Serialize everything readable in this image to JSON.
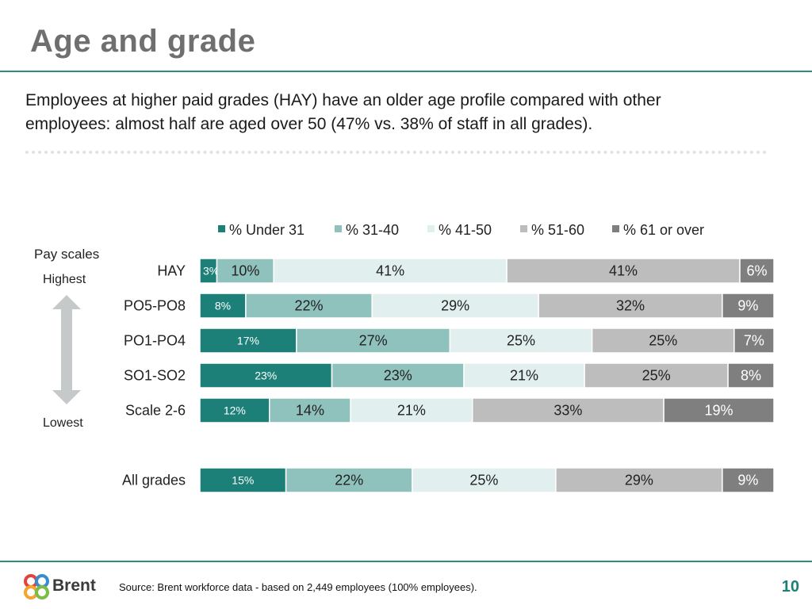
{
  "slide": {
    "title": "Age and grade",
    "intro": "Employees at higher paid grades (HAY) have an older age profile compared with other employees: almost half are aged over 50 (47% vs. 38% of staff in all grades).",
    "source": "Source: Brent workforce data - based on 2,449 employees (100% employees).",
    "page_number": "10",
    "logo_text": "Brent"
  },
  "pay_scale_axis": {
    "title": "Pay scales",
    "top_label": "Highest",
    "bottom_label": "Lowest"
  },
  "colors": {
    "accent": "#2f8a80",
    "series": [
      "#1d8078",
      "#8fc1bd",
      "#e1efee",
      "#bdbdbd",
      "#7f7f7f"
    ],
    "dark_text": "#222222",
    "light_text": "#ffffff"
  },
  "chart_data": {
    "type": "bar",
    "orientation": "horizontal",
    "stacked": true,
    "normalized": true,
    "xlim": [
      0,
      100
    ],
    "legend_position": "top",
    "series_names": [
      "% Under 31",
      "% 31-40",
      "% 41-50",
      "% 51-60",
      "% 61 or over"
    ],
    "rows": [
      {
        "name": "HAY",
        "values": [
          3,
          10,
          41,
          41,
          6
        ],
        "labels": [
          "3%",
          "10%",
          "41%",
          "41%",
          "6%"
        ]
      },
      {
        "name": "PO5-PO8",
        "values": [
          8,
          22,
          29,
          32,
          9
        ],
        "labels": [
          "8%",
          "22%",
          "29%",
          "32%",
          "9%"
        ]
      },
      {
        "name": "PO1-PO4",
        "values": [
          17,
          27,
          25,
          25,
          7
        ],
        "labels": [
          "17%",
          "27%",
          "25%",
          "25%",
          "7%"
        ]
      },
      {
        "name": "SO1-SO2",
        "values": [
          23,
          23,
          21,
          25,
          8
        ],
        "labels": [
          "23%",
          "23%",
          "21%",
          "25%",
          "8%"
        ]
      },
      {
        "name": "Scale 2-6",
        "values": [
          12,
          14,
          21,
          33,
          19
        ],
        "labels": [
          "12%",
          "14%",
          "21%",
          "33%",
          "19%"
        ]
      },
      {
        "name": "All grades",
        "values": [
          15,
          22,
          25,
          29,
          9
        ],
        "labels": [
          "15%",
          "22%",
          "25%",
          "29%",
          "9%"
        ]
      }
    ]
  }
}
